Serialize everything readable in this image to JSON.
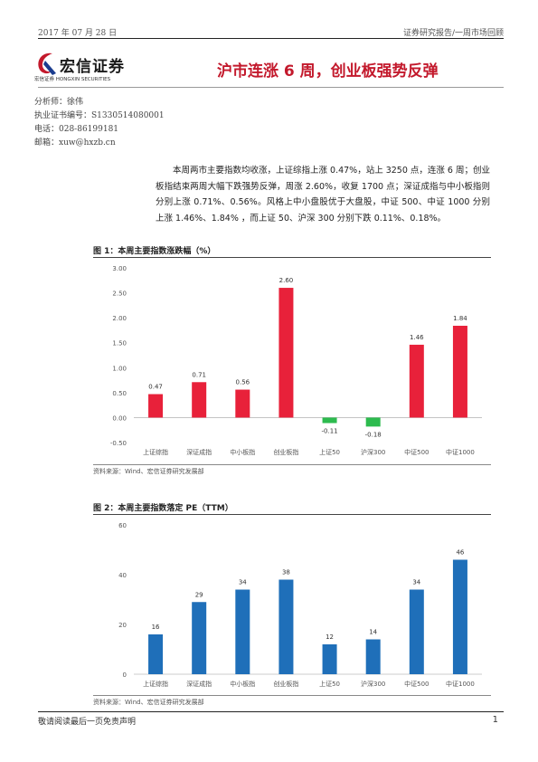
{
  "header": {
    "date": "2017 年 07 月 28 日",
    "category": "证券研究报告/一周市场回顾"
  },
  "logo": {
    "name": "宏信证券",
    "subtitle": "宏信证券  HONGXIN SECURITIES"
  },
  "title": "沪市连涨 6 周，创业板强势反弹",
  "analyst": {
    "name_line": "分析师：徐伟",
    "license_line": "执业证书编号：S1330514080001",
    "phone_line": "电话：028-86199181",
    "email_line": "邮箱：xuw@hxzb.cn"
  },
  "summary": "本周两市主要指数均收涨，上证综指上涨 0.47%，站上 3250 点，连涨 6 周；创业板指结束两周大幅下跌强势反弹，周涨 2.60%，收复 1700 点；深证成指与中小板指则分别上涨 0.71%、0.56%。风格上中小盘股优于大盘股，中证 500、中证 1000 分别上涨 1.46%、1.84% ，而上证 50、沪深 300 分别下跌 0.11%、0.18%。",
  "figure1": {
    "caption": "图 1：本周主要指数涨跌幅（%）",
    "source": "资料来源：Wind、宏信证券研究发展部"
  },
  "figure2": {
    "caption": "图 2：本周主要指数落定 PE（TTM）",
    "source": "资料来源：Wind、宏信证券研究发展部"
  },
  "chart_data": [
    {
      "type": "bar",
      "title": "本周主要指数涨跌幅（%）",
      "categories": [
        "上证综指",
        "深证成指",
        "中小板指",
        "创业板指",
        "上证50",
        "沪深300",
        "中证500",
        "中证1000"
      ],
      "values": [
        0.47,
        0.71,
        0.56,
        2.6,
        -0.11,
        -0.18,
        1.46,
        1.84
      ],
      "value_labels": [
        "0.47",
        "0.71",
        "0.56",
        "2.60",
        "-0.11",
        "-0.18",
        "1.46",
        "1.84"
      ],
      "yticks": [
        "3.00",
        "2.50",
        "2.00",
        "1.50",
        "1.00",
        "0.50",
        "0.00",
        "-0.50"
      ],
      "ylim": [
        -0.5,
        3.0
      ],
      "positive_color": "#e8213a",
      "negative_color": "#2dbb4e",
      "grid": false
    },
    {
      "type": "bar",
      "title": "本周主要指数落定 PE（TTM）",
      "categories": [
        "上证综指",
        "深证成指",
        "中小板指",
        "创业板指",
        "上证50",
        "沪深300",
        "中证500",
        "中证1000"
      ],
      "values": [
        16,
        29,
        34,
        38,
        12,
        14,
        34,
        46
      ],
      "value_labels": [
        "16",
        "29",
        "34",
        "38",
        "12",
        "14",
        "34",
        "46"
      ],
      "yticks": [
        "60",
        "40",
        "20",
        "0"
      ],
      "ylim": [
        0,
        60
      ],
      "bar_color": "#1f6fb9",
      "grid": false
    }
  ],
  "footer": {
    "disclaimer": "敬请阅读最后一页免责声明",
    "page": "1"
  }
}
